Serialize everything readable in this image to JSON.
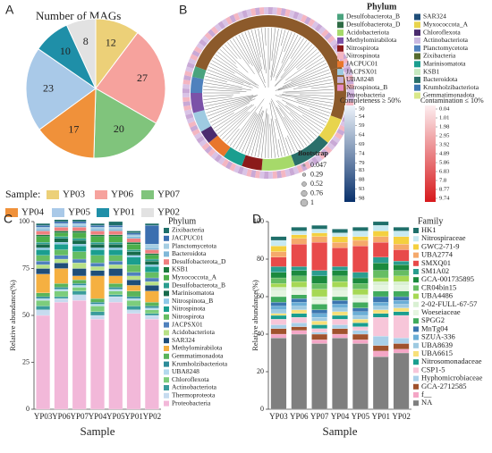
{
  "chart_data": [
    {
      "type": "pie",
      "panel": "A",
      "title": "Number of MAGs",
      "legend_title": "Sample:",
      "categories": [
        "YP03",
        "YP06",
        "YP07",
        "YP04",
        "YP05",
        "YP01",
        "YP02"
      ],
      "values": [
        12,
        27,
        20,
        17,
        23,
        10,
        8
      ],
      "colors": [
        "#ecd078",
        "#f6a29d",
        "#80c47c",
        "#f0913a",
        "#a9c9e8",
        "#1f8fa8",
        "#e2e2e2"
      ]
    },
    {
      "type": "tree",
      "panel": "B",
      "legend_title": "Phylum",
      "phyla": [
        {
          "name": "Desulfobacterota_B",
          "color": "#4aa37e"
        },
        {
          "name": "Desulfobacterota_D",
          "color": "#2e6b45"
        },
        {
          "name": "Acidobacteriota",
          "color": "#a6d96a"
        },
        {
          "name": "Methylomirabilota",
          "color": "#7b52a8"
        },
        {
          "name": "Nitrospirota",
          "color": "#8b1a1a"
        },
        {
          "name": "Nitrospinota",
          "color": "#f4b6c2"
        },
        {
          "name": "JACPUC01",
          "color": "#e8762b"
        },
        {
          "name": "JACPSX01",
          "color": "#9ecae1"
        },
        {
          "name": "UBA8248",
          "color": "#c5b0d5"
        },
        {
          "name": "Nitrospinota_B",
          "color": "#e78ac3"
        },
        {
          "name": "Proteobacteria",
          "color": "#8c5a2b"
        },
        {
          "name": "SAR324",
          "color": "#1f4e79"
        },
        {
          "name": "Myxococcota_A",
          "color": "#e8d44d"
        },
        {
          "name": "Chloroflexota",
          "color": "#4b2c6f"
        },
        {
          "name": "Actinobacteriota",
          "color": "#c9b8e0"
        },
        {
          "name": "Planctomycetota",
          "color": "#4f81bd"
        },
        {
          "name": "Zixibacteria",
          "color": "#556b2f"
        },
        {
          "name": "Marinisomatota",
          "color": "#1a9e8f"
        },
        {
          "name": "KSB1",
          "color": "#c7e9c0"
        },
        {
          "name": "Bacteroidota",
          "color": "#2a6f6a"
        },
        {
          "name": "Krumholzibacteriota",
          "color": "#3b75af"
        },
        {
          "name": "Gemmatimonadota",
          "color": "#d9e88a"
        }
      ],
      "completeness": {
        "title": "Completeness ≥ 50%",
        "ticks": [
          50,
          54,
          59,
          64,
          69,
          74,
          79,
          83,
          88,
          93,
          98
        ],
        "colors": [
          "#eef4fb",
          "#08306b"
        ]
      },
      "contamination": {
        "title": "Contamination ≤ 10%",
        "ticks": [
          0.04,
          1.01,
          1.98,
          2.95,
          3.92,
          4.89,
          5.86,
          6.83,
          7.8,
          8.77,
          9.74
        ],
        "colors": [
          "#fdeef0",
          "#d7191c"
        ]
      },
      "bootstrap": {
        "title": "Bootstrap",
        "ticks": [
          0.047,
          0.29,
          0.52,
          0.76,
          1
        ]
      }
    },
    {
      "type": "stacked_bar",
      "panel": "C",
      "legend_title": "Phylum",
      "y_label": "Relative abundance(%)",
      "x_label": "Sample",
      "categories": [
        "YP03",
        "YP06",
        "YP07",
        "YP04",
        "YP05",
        "YP01",
        "YP02"
      ],
      "ylim": [
        0,
        100
      ],
      "yticks": [
        0,
        25,
        50,
        75,
        100
      ],
      "series": [
        {
          "name": "Zixibacteria",
          "color": "#1f6f6a",
          "values": [
            1,
            1,
            1,
            1,
            2,
            1,
            1
          ]
        },
        {
          "name": "JACPUC01",
          "color": "#3b6fb0",
          "values": [
            1,
            1,
            1,
            1,
            1,
            1,
            10
          ]
        },
        {
          "name": "Planctomycetota",
          "color": "#a6cee3",
          "values": [
            1,
            1,
            1,
            1,
            1,
            1,
            2
          ]
        },
        {
          "name": "Bacteroidota",
          "color": "#7fb8d8",
          "values": [
            1,
            1,
            1,
            1,
            1,
            1,
            1
          ]
        },
        {
          "name": "Desulfobacterota_D",
          "color": "#f08080",
          "values": [
            2,
            2,
            2,
            2,
            2,
            2,
            2
          ]
        },
        {
          "name": "KSB1",
          "color": "#1b7a3e",
          "values": [
            1,
            1,
            1,
            1,
            1,
            1,
            1
          ]
        },
        {
          "name": "Myxococcota_A",
          "color": "#4daf4a",
          "values": [
            3,
            2,
            3,
            3,
            3,
            3,
            2
          ]
        },
        {
          "name": "Desulfobacterota_B",
          "color": "#2a9d8f",
          "values": [
            1,
            1,
            1,
            1,
            1,
            1,
            1
          ]
        },
        {
          "name": "Marinisomatota",
          "color": "#176b4b",
          "values": [
            2,
            2,
            2,
            2,
            2,
            2,
            2
          ]
        },
        {
          "name": "Nitrospinota_B",
          "color": "#8fc9e8",
          "values": [
            1,
            1,
            1,
            1,
            1,
            1,
            1
          ]
        },
        {
          "name": "Nitrospinota",
          "color": "#1a9e8f",
          "values": [
            3,
            3,
            3,
            3,
            3,
            4,
            3
          ]
        },
        {
          "name": "Nitrospirota",
          "color": "#66bd63",
          "values": [
            3,
            3,
            4,
            4,
            3,
            4,
            3
          ]
        },
        {
          "name": "JACPSX01",
          "color": "#4f81bd",
          "values": [
            2,
            2,
            2,
            2,
            2,
            2,
            2
          ]
        },
        {
          "name": "Acidobacteriota",
          "color": "#b8e186",
          "values": [
            2,
            2,
            3,
            2,
            2,
            2,
            2
          ]
        },
        {
          "name": "SAR324",
          "color": "#1f4e79",
          "values": [
            3,
            3,
            4,
            3,
            4,
            3,
            3
          ]
        },
        {
          "name": "Methylomirabilota",
          "color": "#f5b041",
          "values": [
            10,
            8,
            2,
            12,
            4,
            3,
            6
          ]
        },
        {
          "name": "Gemmatimonadota",
          "color": "#5ab45a",
          "values": [
            2,
            2,
            2,
            2,
            2,
            3,
            2
          ]
        },
        {
          "name": "Krumholzibacteriota",
          "color": "#2c8c99",
          "values": [
            1,
            1,
            1,
            1,
            1,
            1,
            1
          ]
        },
        {
          "name": "UBA8248",
          "color": "#b3d9ee",
          "values": [
            1,
            1,
            1,
            1,
            1,
            1,
            1
          ]
        },
        {
          "name": "Chloroflexota",
          "color": "#7ccd7c",
          "values": [
            3,
            3,
            2,
            3,
            2,
            3,
            2
          ]
        },
        {
          "name": "Actinobacteriota",
          "color": "#3a9c9c",
          "values": [
            2,
            1,
            2,
            2,
            1,
            2,
            1
          ]
        },
        {
          "name": "Thermoproteota",
          "color": "#c6dbef",
          "values": [
            3,
            2,
            3,
            2,
            3,
            2,
            2
          ]
        },
        {
          "name": "Proteobacteria",
          "color": "#f2b8d9",
          "values": [
            50,
            57,
            58,
            48,
            57,
            51,
            48
          ]
        }
      ]
    },
    {
      "type": "stacked_bar",
      "panel": "D",
      "legend_title": "Family",
      "y_label": "Relative abundance(%)",
      "x_label": "Sample",
      "categories": [
        "YP03",
        "YP06",
        "YP07",
        "YP04",
        "YP05",
        "YP01",
        "YP02"
      ],
      "ylim": [
        0,
        100
      ],
      "yticks": [
        0,
        20,
        40,
        60,
        80,
        100
      ],
      "series": [
        {
          "name": "HK1",
          "color": "#1f6f6a",
          "values": [
            2,
            2,
            2,
            2,
            2,
            2,
            2
          ]
        },
        {
          "name": "Nitrospiraceae",
          "color": "#c7e9f1",
          "values": [
            3,
            2,
            2,
            2,
            3,
            3,
            3
          ]
        },
        {
          "name": "GWC2-71-9",
          "color": "#f4d03f",
          "values": [
            3,
            2,
            2,
            3,
            2,
            3,
            4
          ]
        },
        {
          "name": "UBA2774",
          "color": "#f5a96b",
          "values": [
            3,
            3,
            3,
            3,
            3,
            3,
            3
          ]
        },
        {
          "name": "SMXQ01",
          "color": "#e84a4a",
          "values": [
            5,
            12,
            15,
            10,
            14,
            8,
            6
          ]
        },
        {
          "name": "SM1A02",
          "color": "#2a9d8f",
          "values": [
            3,
            2,
            3,
            2,
            3,
            3,
            2
          ]
        },
        {
          "name": "GCA-001735895",
          "color": "#1b8a3e",
          "values": [
            3,
            3,
            4,
            3,
            3,
            4,
            3
          ]
        },
        {
          "name": "CR04bin15",
          "color": "#66bd63",
          "values": [
            3,
            3,
            3,
            3,
            3,
            4,
            3
          ]
        },
        {
          "name": "UBA4486",
          "color": "#a6d854",
          "values": [
            2,
            3,
            4,
            3,
            3,
            2,
            3
          ]
        },
        {
          "name": "2-02-FULL-67-57",
          "color": "#d9f0d3",
          "values": [
            2,
            2,
            2,
            2,
            2,
            2,
            2
          ]
        },
        {
          "name": "Woeseiaceae",
          "color": "#e5f5e0",
          "values": [
            3,
            2,
            2,
            3,
            2,
            3,
            3
          ]
        },
        {
          "name": "SPGG2",
          "color": "#41ab5d",
          "values": [
            3,
            2,
            3,
            2,
            3,
            3,
            3
          ]
        },
        {
          "name": "MnTg04",
          "color": "#3b75af",
          "values": [
            2,
            2,
            2,
            2,
            2,
            3,
            2
          ]
        },
        {
          "name": "SZUA-336",
          "color": "#6baed6",
          "values": [
            2,
            2,
            2,
            2,
            2,
            2,
            2
          ]
        },
        {
          "name": "UBA8639",
          "color": "#9ecae1",
          "values": [
            2,
            2,
            2,
            2,
            2,
            2,
            2
          ]
        },
        {
          "name": "UBA6615",
          "color": "#f7e07a",
          "values": [
            1,
            2,
            2,
            2,
            2,
            2,
            2
          ]
        },
        {
          "name": "Nitrosomonadaceae",
          "color": "#1a9e8f",
          "values": [
            2,
            2,
            2,
            2,
            2,
            2,
            2
          ]
        },
        {
          "name": "CSP1-5",
          "color": "#f7c6d9",
          "values": [
            3,
            3,
            2,
            3,
            2,
            10,
            12
          ]
        },
        {
          "name": "Hyphomicrobiaceae",
          "color": "#a9cfe8",
          "values": [
            2,
            2,
            1,
            2,
            2,
            5,
            3
          ]
        },
        {
          "name": "GCA-2712585",
          "color": "#a0522d",
          "values": [
            3,
            2,
            3,
            3,
            3,
            3,
            3
          ]
        },
        {
          "name": "f__",
          "color": "#f4a6c6",
          "values": [
            2,
            2,
            2,
            2,
            2,
            3,
            2
          ]
        },
        {
          "name": "NA",
          "color": "#7f7f7f",
          "values": [
            38,
            40,
            35,
            38,
            35,
            28,
            30
          ]
        }
      ]
    }
  ]
}
